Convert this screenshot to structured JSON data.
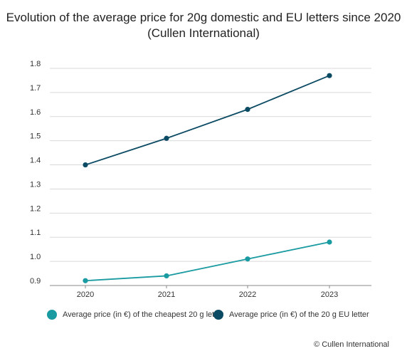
{
  "title": {
    "line1": "Evolution of the average price for 20g domestic and EU letters since 2020",
    "line2": "(Cullen International)"
  },
  "credit": "© Cullen International",
  "chart_data": {
    "type": "line",
    "title": "Evolution of the average price for 20g domestic and EU letters since 2020 (Cullen International)",
    "x": [
      "2020",
      "2021",
      "2022",
      "2023"
    ],
    "ylim": [
      0.9,
      1.8
    ],
    "yticks": [
      "0.9",
      "1.0",
      "1.1",
      "1.2",
      "1.3",
      "1.4",
      "1.5",
      "1.6",
      "1.7",
      "1.8"
    ],
    "grid": true,
    "legend_position": "bottom",
    "series": [
      {
        "name": "Average price (in €) of the cheapest 20 g letter",
        "color": "#1a9ba1",
        "values": [
          0.92,
          0.94,
          1.01,
          1.08
        ]
      },
      {
        "name": "Average price (in €) of the 20 g EU letter",
        "color": "#0b4a63",
        "values": [
          1.4,
          1.51,
          1.63,
          1.77
        ]
      }
    ]
  }
}
